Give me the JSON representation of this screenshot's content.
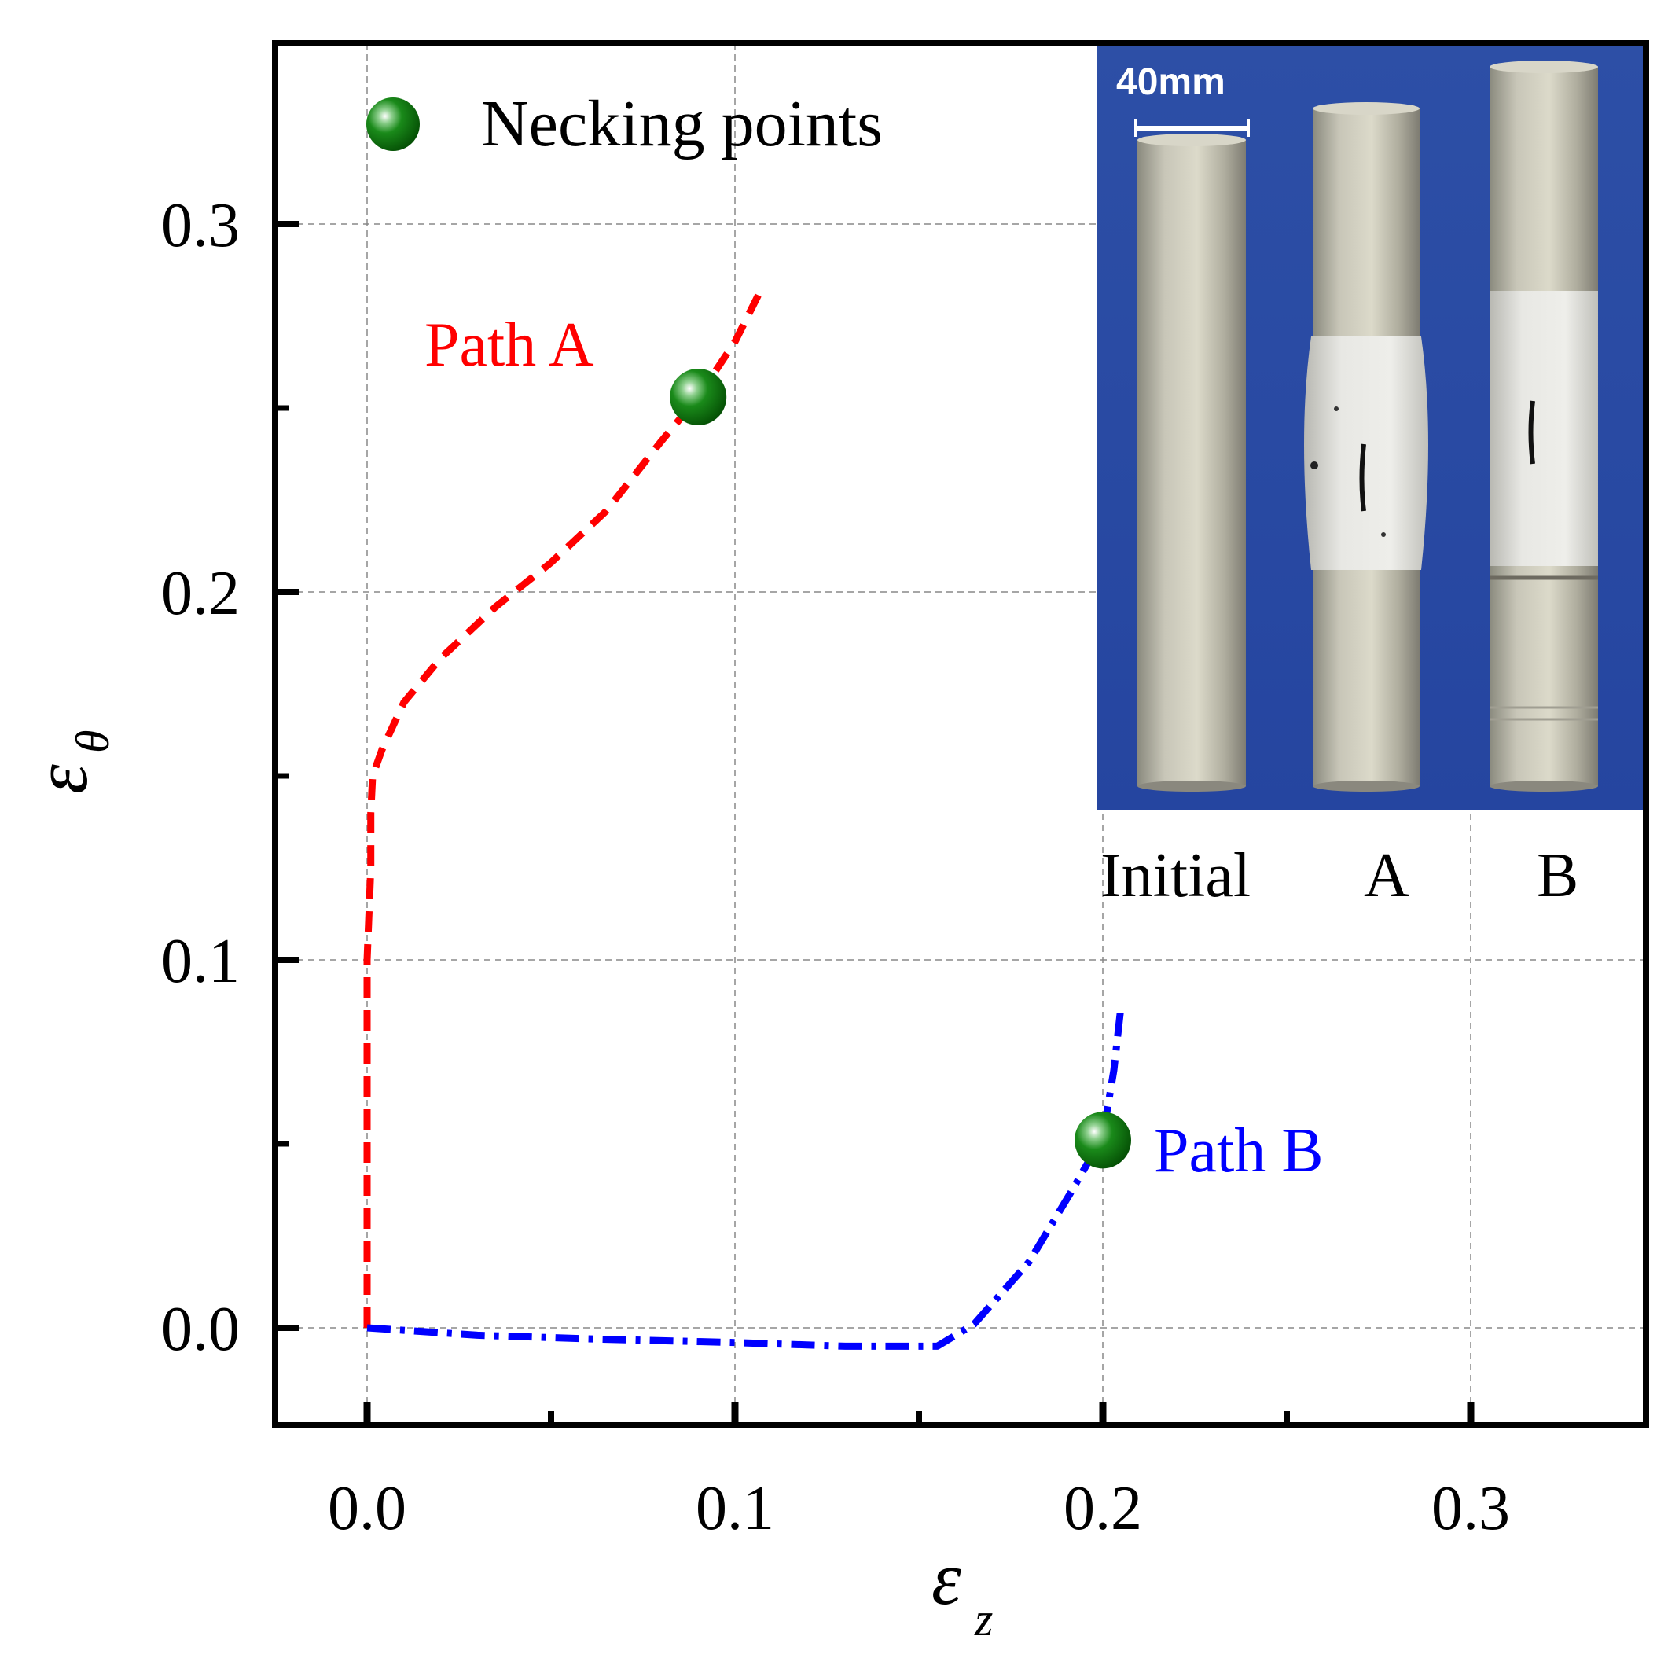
{
  "chart_data": {
    "type": "line",
    "xlabel": "ε",
    "xlabel_sub": "z",
    "ylabel": "ε",
    "ylabel_sub": "θ",
    "xlim": [
      -0.025,
      0.35
    ],
    "ylim": [
      -0.025,
      0.35
    ],
    "xticks": [
      0.0,
      0.1,
      0.2,
      0.3
    ],
    "xtick_labels": [
      "0.0",
      "0.1",
      "0.2",
      "0.3"
    ],
    "yticks": [
      0.0,
      0.1,
      0.2,
      0.3
    ],
    "ytick_labels": [
      "0.0",
      "0.1",
      "0.2",
      "0.3"
    ],
    "grid": true,
    "series": [
      {
        "name": "Path A",
        "color": "#ff0000",
        "style": "dashed",
        "x": [
          0.0,
          0.0,
          0.0,
          0.001,
          0.001,
          0.0015,
          0.004,
          0.01,
          0.02,
          0.035,
          0.05,
          0.065,
          0.08,
          0.09,
          0.1,
          0.107
        ],
        "y": [
          0.0,
          0.05,
          0.1,
          0.125,
          0.14,
          0.15,
          0.157,
          0.17,
          0.182,
          0.196,
          0.208,
          0.222,
          0.241,
          0.253,
          0.268,
          0.282
        ]
      },
      {
        "name": "Path B",
        "color": "#0000ff",
        "style": "dashdot",
        "x": [
          0.0,
          0.03,
          0.06,
          0.1,
          0.13,
          0.155,
          0.165,
          0.18,
          0.192,
          0.2,
          0.203,
          0.205
        ],
        "y": [
          0.0,
          -0.002,
          -0.003,
          -0.004,
          -0.005,
          -0.005,
          0.001,
          0.018,
          0.038,
          0.052,
          0.07,
          0.088
        ]
      }
    ],
    "necking_points": [
      {
        "x": 0.09,
        "y": 0.253
      },
      {
        "x": 0.2,
        "y": 0.051
      }
    ],
    "legend": {
      "label": "Necking points",
      "placement": "top-left",
      "color": "#0a7a0a"
    },
    "annotations": [
      {
        "text": "Path A",
        "color": "#ff0000"
      },
      {
        "text": "Path B",
        "color": "#0000ff"
      }
    ],
    "inset": {
      "scale_label": "40mm",
      "specimen_labels": [
        "Initial",
        "A",
        "B"
      ]
    }
  }
}
